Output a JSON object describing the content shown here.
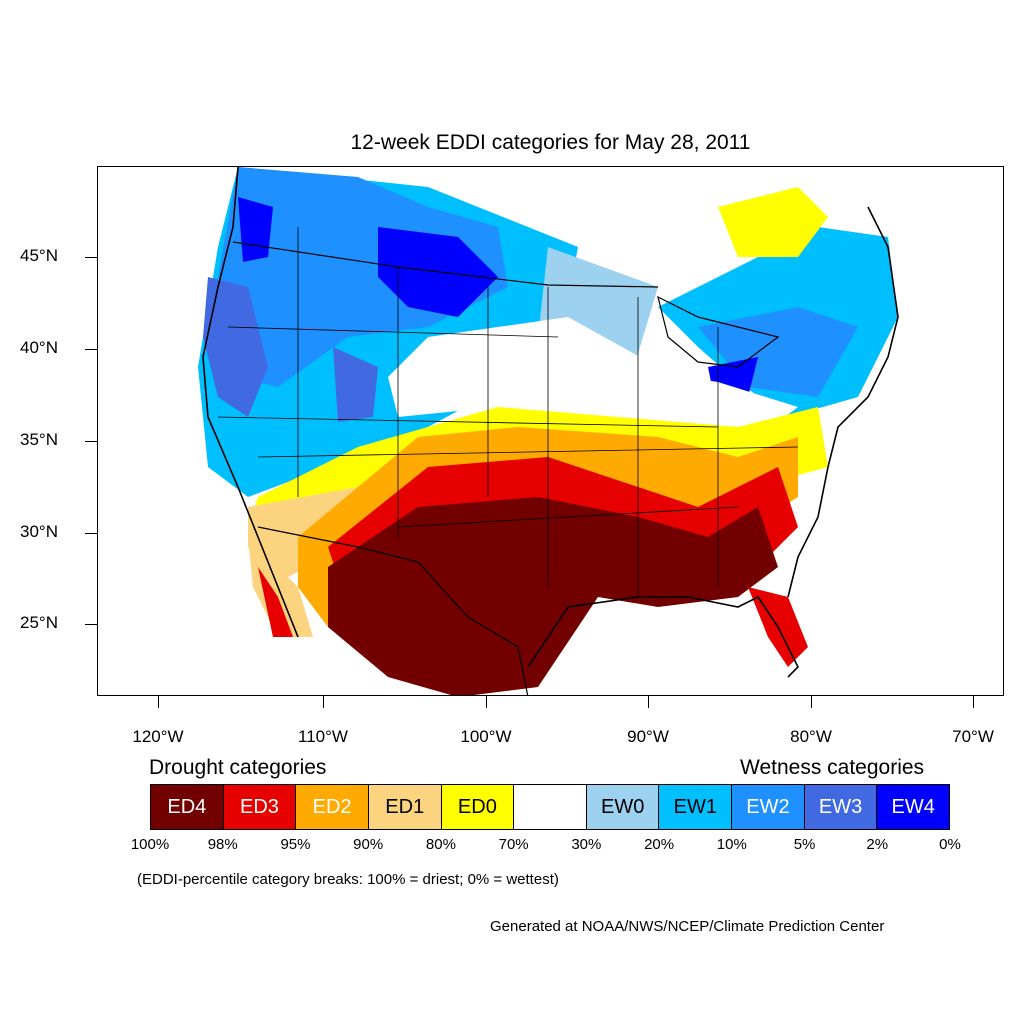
{
  "title": "12-week EDDI categories for May 28, 2011",
  "lat_labels": [
    "45°N",
    "40°N",
    "35°N",
    "30°N",
    "25°N"
  ],
  "lon_labels": [
    "120°W",
    "110°W",
    "100°W",
    "90°W",
    "80°W",
    "70°W"
  ],
  "legend": {
    "drought_heading": "Drought categories",
    "wetness_heading": "Wetness categories",
    "categories": [
      {
        "label": "ED4",
        "color": "#730000",
        "text_color": "#ffffff"
      },
      {
        "label": "ED3",
        "color": "#e60000",
        "text_color": "#ffffff"
      },
      {
        "label": "ED2",
        "color": "#ffaa00",
        "text_color": "#ffffff"
      },
      {
        "label": "ED1",
        "color": "#fcd37f",
        "text_color": "#000000"
      },
      {
        "label": "ED0",
        "color": "#ffff00",
        "text_color": "#000000"
      },
      {
        "label": "",
        "color": "#ffffff",
        "text_color": "#000000"
      },
      {
        "label": "EW0",
        "color": "#9dd1f0",
        "text_color": "#000000"
      },
      {
        "label": "EW1",
        "color": "#00bfff",
        "text_color": "#000000"
      },
      {
        "label": "EW2",
        "color": "#1e90ff",
        "text_color": "#ffffff"
      },
      {
        "label": "EW3",
        "color": "#4169e1",
        "text_color": "#ffffff"
      },
      {
        "label": "EW4",
        "color": "#0000ff",
        "text_color": "#ffffff"
      }
    ],
    "percentiles": [
      "100%",
      "98%",
      "95%",
      "90%",
      "80%",
      "70%",
      "30%",
      "20%",
      "10%",
      "5%",
      "2%",
      "0%"
    ]
  },
  "note": "(EDDI-percentile category breaks: 100% = driest; 0% = wettest)",
  "credit": "Generated at NOAA/NWS/NCEP/Climate Prediction Center"
}
